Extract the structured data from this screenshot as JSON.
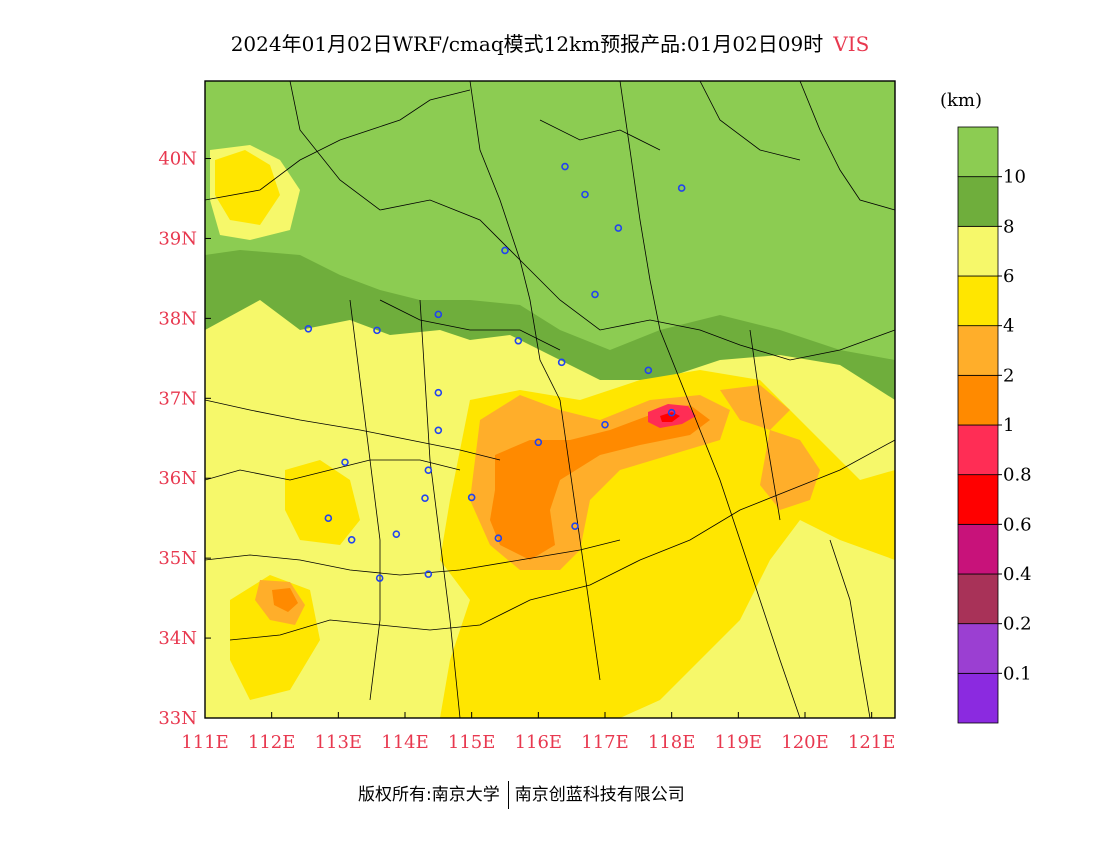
{
  "title": {
    "main": "2024年01月02日WRF/cmaq模式12km预报产品:01月02日09时",
    "variable": "VIS"
  },
  "legend": {
    "unit": "(km)",
    "colors": [
      "#8b2ae0",
      "#9b3fd2",
      "#a83258",
      "#c8127a",
      "#ff0000",
      "#ff2d55",
      "#ff8a00",
      "#ffae2a",
      "#ffe600",
      "#f6f86a",
      "#6fae3c",
      "#8ccc52"
    ],
    "labels": [
      "0.1",
      "0.2",
      "0.4",
      "0.6",
      "0.8",
      "1",
      "2",
      "4",
      "6",
      "8",
      "10"
    ]
  },
  "map": {
    "lon_range": [
      111,
      121.35
    ],
    "lat_range": [
      33,
      40.97
    ],
    "lon_ticks": [
      "111E",
      "112E",
      "113E",
      "114E",
      "115E",
      "116E",
      "117E",
      "118E",
      "119E",
      "120E",
      "121E"
    ],
    "lat_ticks": [
      "33N",
      "34N",
      "35N",
      "36N",
      "37N",
      "38N",
      "39N",
      "40N"
    ],
    "tick_color": "#e8384f",
    "cities": [
      [
        116.4,
        39.9
      ],
      [
        116.7,
        39.55
      ],
      [
        118.15,
        39.63
      ],
      [
        117.2,
        39.13
      ],
      [
        115.5,
        38.85
      ],
      [
        116.85,
        38.3
      ],
      [
        112.55,
        37.87
      ],
      [
        113.58,
        37.85
      ],
      [
        114.5,
        38.05
      ],
      [
        115.7,
        37.72
      ],
      [
        116.35,
        37.45
      ],
      [
        117.65,
        37.35
      ],
      [
        114.5,
        37.07
      ],
      [
        118.0,
        36.82
      ],
      [
        117.0,
        36.67
      ],
      [
        114.5,
        36.6
      ],
      [
        116.0,
        36.45
      ],
      [
        113.1,
        36.2
      ],
      [
        114.35,
        36.1
      ],
      [
        115.0,
        35.76
      ],
      [
        114.3,
        35.75
      ],
      [
        112.85,
        35.5
      ],
      [
        116.55,
        35.4
      ],
      [
        113.87,
        35.3
      ],
      [
        113.2,
        35.23
      ],
      [
        115.4,
        35.25
      ],
      [
        114.35,
        34.8
      ],
      [
        113.62,
        34.75
      ]
    ]
  },
  "footer": {
    "left": "版权所有:南京大学",
    "right": "南京创蓝科技有限公司"
  }
}
